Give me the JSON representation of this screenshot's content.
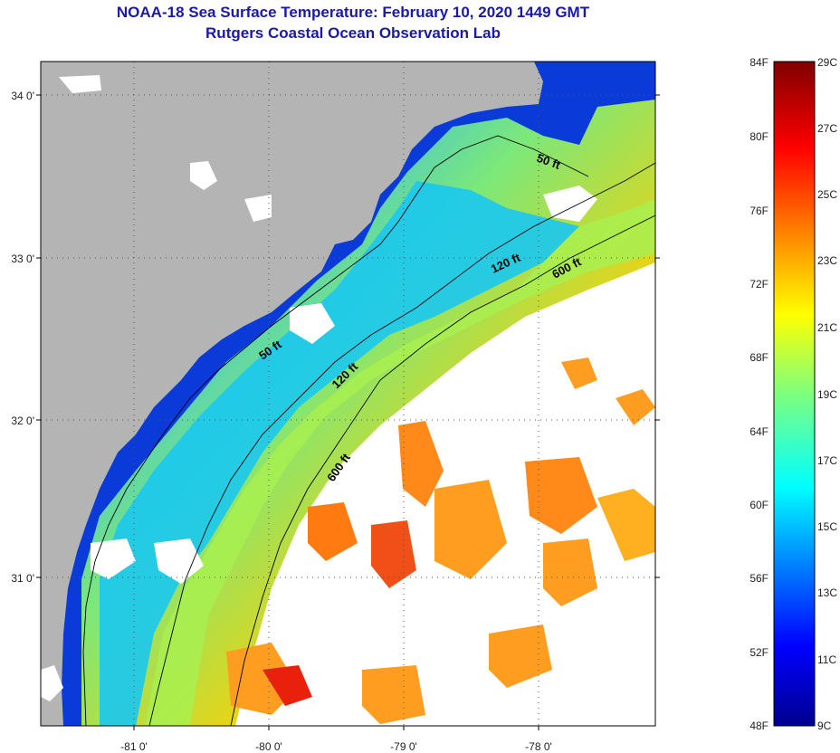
{
  "title": {
    "line1": "NOAA-18 Sea Surface Temperature:  February 10, 2020 1449 GMT",
    "line2": "Rutgers Coastal Ocean Observation Lab"
  },
  "map": {
    "lon_range": [
      -81.7,
      -77.2
    ],
    "lat_range": [
      30.2,
      34.2
    ],
    "lat_ticks": [
      {
        "value": 34.0,
        "label": "34 0'"
      },
      {
        "value": 33.0,
        "label": "33 0'"
      },
      {
        "value": 32.0,
        "label": "32 0'"
      },
      {
        "value": 31.0,
        "label": "31 0'"
      }
    ],
    "lon_ticks": [
      {
        "value": -81.0,
        "label": "-81 0'"
      },
      {
        "value": -80.0,
        "label": "-80 0'"
      },
      {
        "value": -79.0,
        "label": "-79 0'"
      },
      {
        "value": -78.0,
        "label": "-78 0'"
      }
    ],
    "contour_labels": [
      "50 ft",
      "120 ft",
      "600 ft",
      "50 ft",
      "120 ft",
      "600 ft"
    ],
    "colors": {
      "land": "#b4b4b4",
      "cloud": "#ffffff",
      "grid": "#555555"
    }
  },
  "colorbar": {
    "f_labels": [
      "84F",
      "80F",
      "76F",
      "72F",
      "68F",
      "64F",
      "60F",
      "56F",
      "52F",
      "48F"
    ],
    "c_labels": [
      "29C",
      "27C",
      "25C",
      "23C",
      "21C",
      "19C",
      "17C",
      "15C",
      "13C",
      "11C",
      "9C"
    ],
    "range_c": [
      9,
      29
    ],
    "colormap": "jet"
  }
}
